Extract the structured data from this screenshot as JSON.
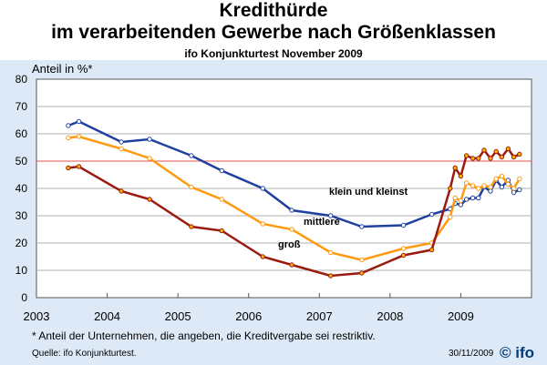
{
  "chart_data": {
    "type": "line",
    "title": "Kredithürde",
    "title2": "im verarbeitenden Gewerbe nach Größenklassen",
    "subtitle": "ifo Konjunkturtest November 2009",
    "ylabel": "Anteil in %*",
    "ylim": [
      0,
      80
    ],
    "yticks": [
      0,
      10,
      20,
      30,
      40,
      50,
      60,
      70,
      80
    ],
    "xlim": [
      2003,
      2010
    ],
    "xticks": [
      "2003",
      "2004",
      "2005",
      "2006",
      "2007",
      "2008",
      "2009"
    ],
    "reference_line": 50,
    "reference_color": "#e05050",
    "x": [
      2003.45,
      2003.6,
      2004.2,
      2004.6,
      2005.19,
      2005.62,
      2006.2,
      2006.61,
      2007.16,
      2007.6,
      2008.19,
      2008.59,
      2008.85,
      2008.92,
      2009.0,
      2009.08,
      2009.17,
      2009.25,
      2009.33,
      2009.42,
      2009.5,
      2009.58,
      2009.67,
      2009.75,
      2009.83
    ],
    "series": [
      {
        "name": "klein und kleinst",
        "color": "#2040a0",
        "marker": "#ffffff",
        "values": [
          63,
          64.5,
          57,
          58,
          52,
          46.5,
          40,
          32,
          30,
          26,
          26.5,
          30.5,
          32.5,
          34.5,
          34,
          36,
          36.5,
          36.5,
          40.5,
          39,
          43,
          40.5,
          43,
          38.5,
          39.5
        ]
      },
      {
        "name": "mittlere",
        "color": "#ff9a10",
        "marker": "#ffffff",
        "values": [
          58.5,
          59,
          54.5,
          51,
          40.5,
          36,
          27,
          25,
          16.5,
          13.8,
          18,
          20,
          29.5,
          36.5,
          35.5,
          42,
          41,
          40,
          41,
          40.5,
          43.5,
          44.5,
          41.5,
          40,
          43.5
        ]
      },
      {
        "name": "groß",
        "color": "#9a1a10",
        "marker": "#ffb000",
        "values": [
          47.5,
          48,
          39,
          36,
          26,
          24.5,
          15,
          12,
          8,
          9,
          15.5,
          17.5,
          40,
          47.5,
          44.5,
          52,
          51,
          51,
          54,
          51,
          53.5,
          51.5,
          54.5,
          51.5,
          52.5
        ]
      }
    ]
  },
  "footnote": "* Anteil der Unternehmen, die angeben, die Kreditvergabe sei restriktiv.",
  "source": "Quelle: ifo Konjunkturtest.",
  "date": "30/11/2009",
  "logo": "© ifo"
}
